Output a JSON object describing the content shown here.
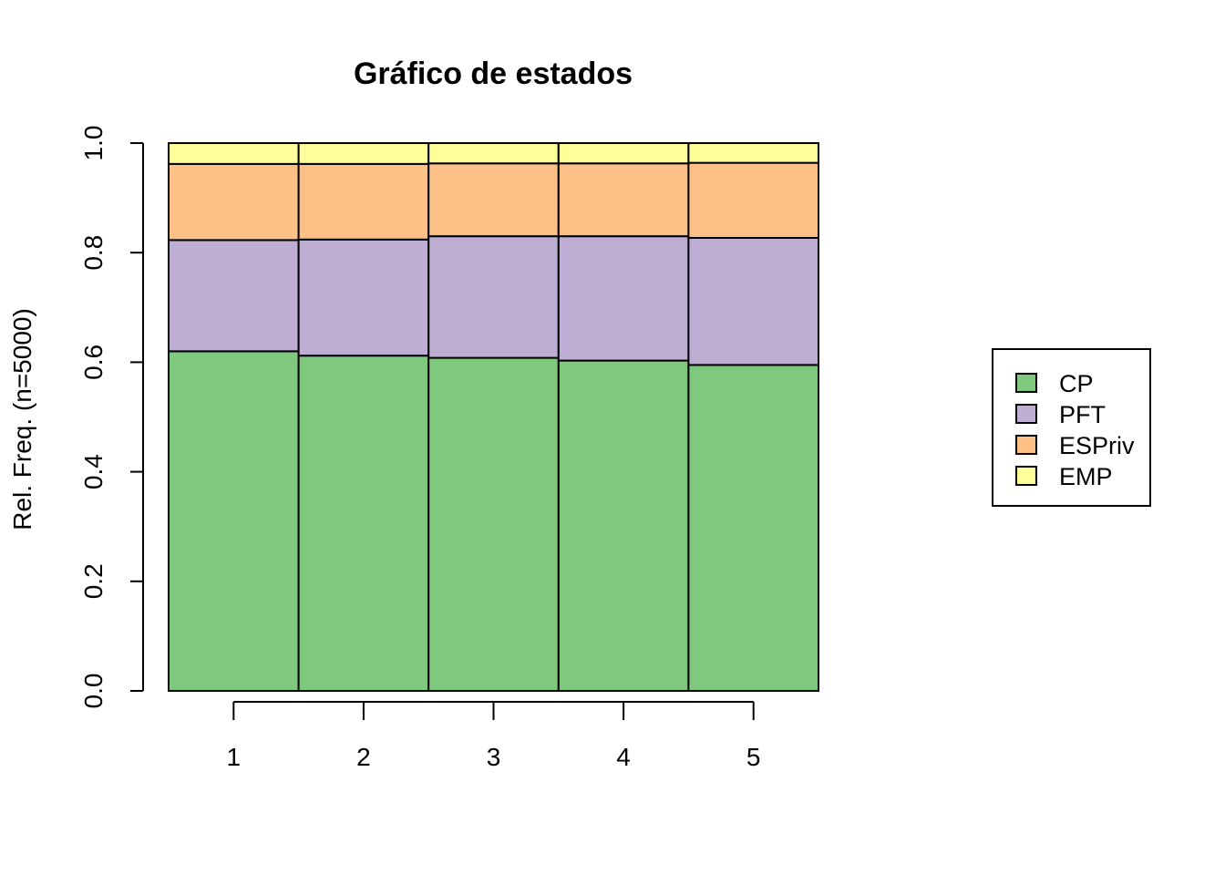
{
  "chart_data": {
    "type": "bar",
    "stacked": true,
    "normalized": true,
    "title": "Gráfico de estados",
    "xlabel": "",
    "ylabel": "Rel. Freq. (n=5000)",
    "categories": [
      "1",
      "2",
      "3",
      "4",
      "5"
    ],
    "ylim": [
      0,
      1
    ],
    "yticks": [
      "0.0",
      "0.2",
      "0.4",
      "0.6",
      "0.8",
      "1.0"
    ],
    "grid": false,
    "legend_position": "right",
    "series": [
      {
        "name": "CP",
        "color": "#7FC97F",
        "values": [
          0.62,
          0.612,
          0.608,
          0.603,
          0.595
        ]
      },
      {
        "name": "PFT",
        "color": "#BEAED4",
        "values": [
          0.203,
          0.212,
          0.222,
          0.227,
          0.232
        ]
      },
      {
        "name": "ESPriv",
        "color": "#FDC086",
        "values": [
          0.139,
          0.138,
          0.133,
          0.133,
          0.137
        ]
      },
      {
        "name": "EMP",
        "color": "#FFFF99",
        "values": [
          0.038,
          0.038,
          0.037,
          0.037,
          0.036
        ]
      }
    ]
  }
}
